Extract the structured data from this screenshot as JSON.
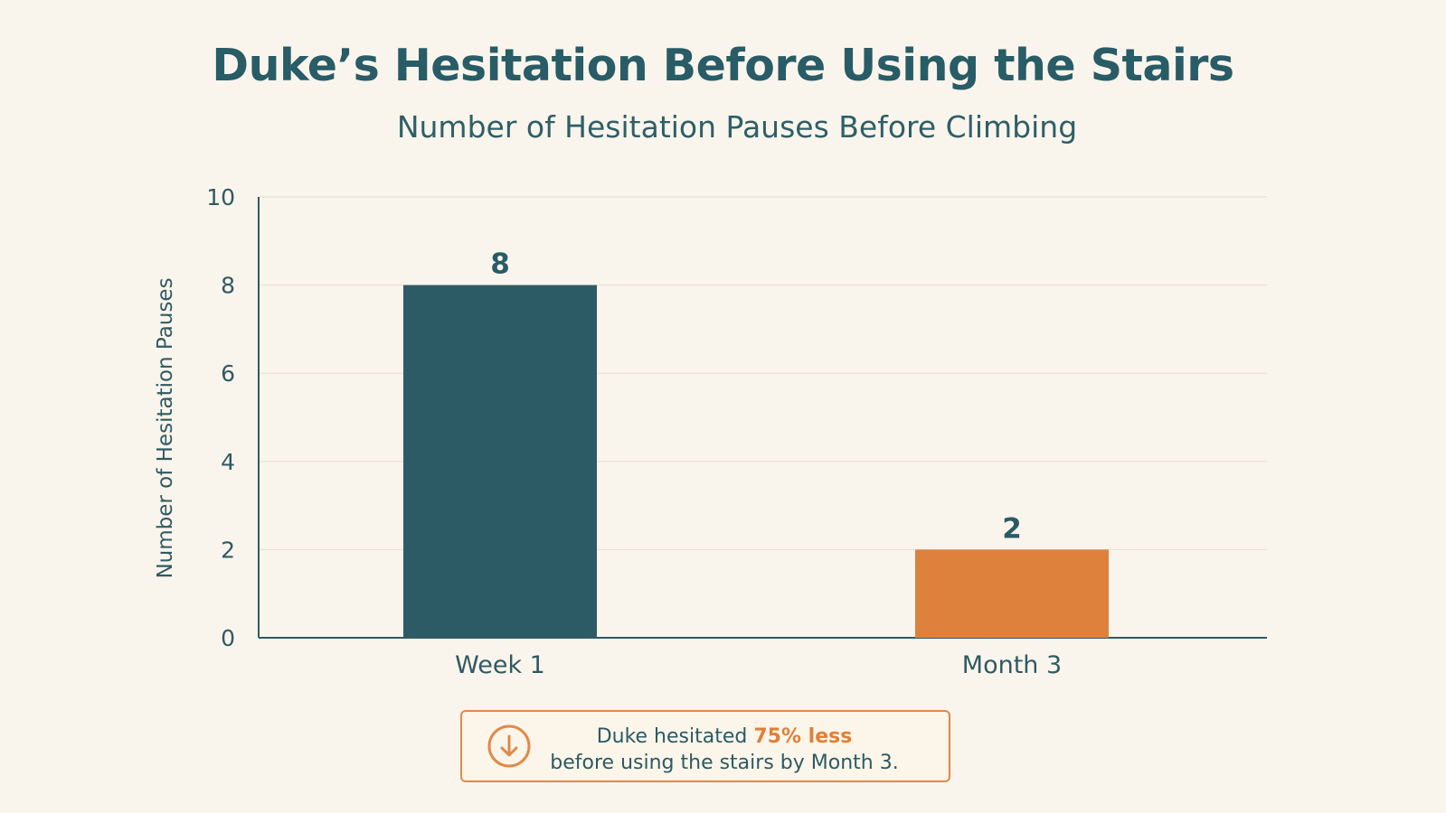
{
  "title": "Duke’s Hesitation Before Using the Stairs",
  "subtitle": "Number of Hesitation Pauses Before Climbing",
  "colors": {
    "background": "#faf5ec",
    "title": "#285c66",
    "week_bar": "#2c5b66",
    "month_bar": "#de813d",
    "axis": "#2f5a63",
    "grid": "#e3ddd2",
    "callout_border": "#e0894a"
  },
  "chart_data": {
    "type": "bar",
    "title": "Duke’s Hesitation Before Using the Stairs",
    "subtitle": "Number of Hesitation Pauses Before Climbing",
    "categories": [
      "Week 1",
      "Month 3"
    ],
    "values": [
      8,
      2
    ],
    "data_labels": [
      "8",
      "2"
    ],
    "xlabel": "",
    "ylabel": "Number of Hesitation Pauses",
    "ylim": [
      0,
      10
    ],
    "yticks": [
      0,
      2,
      4,
      6,
      8,
      10
    ],
    "grid": true,
    "legend": "none"
  },
  "callout": {
    "icon": "down-arrow-circle-icon",
    "text_prefix": "Duke hesitated ",
    "highlight": "75% less",
    "text_line2": "before using the stairs by Month 3."
  }
}
